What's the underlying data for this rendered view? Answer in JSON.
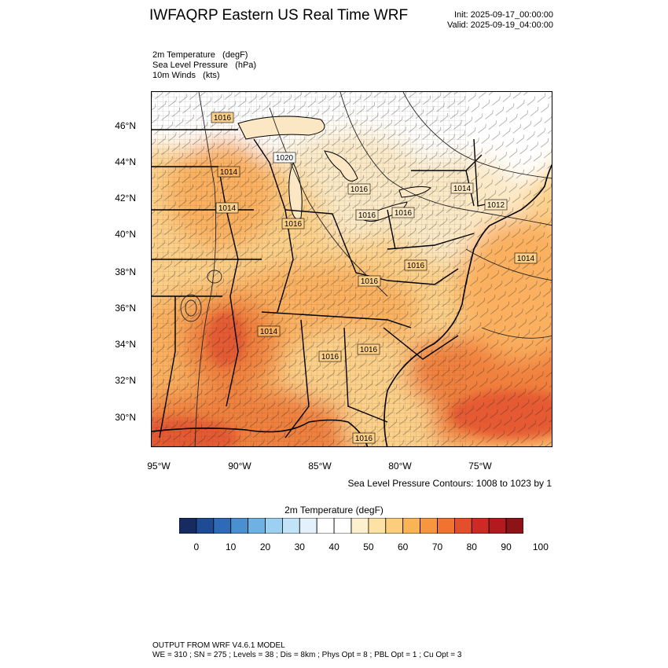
{
  "header": {
    "title": "IWFAQRP Eastern US Real Time WRF",
    "init": "Init: 2025-09-17_00:00:00",
    "valid": "Valid: 2025-09-19_04:00:00"
  },
  "fields": {
    "line1": "2m Temperature   (degF)",
    "line2": "Sea Level Pressure   (hPa)",
    "line3": "10m Winds   (kts)"
  },
  "axes": {
    "lat_labels": [
      "46°N",
      "44°N",
      "42°N",
      "40°N",
      "38°N",
      "36°N",
      "34°N",
      "32°N",
      "30°N"
    ],
    "lon_labels": [
      "95°W",
      "90°W",
      "85°W",
      "80°W",
      "75°W"
    ]
  },
  "map": {
    "pressure_labels": [
      {
        "text": "1016",
        "region": "north-dakota"
      },
      {
        "text": "1020",
        "region": "wisconsin"
      },
      {
        "text": "1014",
        "region": "south-dakota"
      },
      {
        "text": "1014",
        "region": "nebraska"
      },
      {
        "text": "1016",
        "region": "lake-michigan"
      },
      {
        "text": "1016",
        "region": "lower-michigan"
      },
      {
        "text": "1016",
        "region": "ohio"
      },
      {
        "text": "1016",
        "region": "pennsylvania"
      },
      {
        "text": "1014",
        "region": "new-york"
      },
      {
        "text": "1012",
        "region": "new-england"
      },
      {
        "text": "1014",
        "region": "atlantic"
      },
      {
        "text": "1016",
        "region": "maryland"
      },
      {
        "text": "1016",
        "region": "west-virginia"
      },
      {
        "text": "1014",
        "region": "tennessee"
      },
      {
        "text": "1016",
        "region": "carolinas"
      },
      {
        "text": "1016",
        "region": "georgia"
      },
      {
        "text": "1016",
        "region": "florida"
      }
    ],
    "colors": {
      "cold": "#ffffff",
      "cool": "#fbe5b4",
      "mild": "#fcd089",
      "warm": "#fab05e",
      "hot": "#f0803c",
      "very_hot": "#e55a30",
      "water_cool": "#fde7bd"
    }
  },
  "slp_note": "Sea Level Pressure Contours: 1008 to 1023 by 1",
  "colorbar": {
    "title": "2m Temperature  (degF)",
    "colors": [
      "#162b60",
      "#1f4a94",
      "#2e6ab8",
      "#4a8fcf",
      "#6eb2e3",
      "#9bd0f0",
      "#c2e3f7",
      "#e2f1fb",
      "#ffffff",
      "#ffffff",
      "#fdf0cf",
      "#fde2a4",
      "#fccd7a",
      "#fab455",
      "#f7963e",
      "#f0742f",
      "#e34f2a",
      "#cd2a26",
      "#b21a20",
      "#8e1318"
    ],
    "labels": [
      "0",
      "10",
      "20",
      "30",
      "40",
      "50",
      "60",
      "70",
      "80",
      "90",
      "100"
    ]
  },
  "footer": {
    "line1": "OUTPUT FROM WRF V4.6.1 MODEL",
    "line2": "WE = 310 ; SN = 275 ; Levels = 38 ; Dis = 8km ; Phys Opt = 8 ; PBL Opt = 1 ; Cu Opt = 3"
  }
}
